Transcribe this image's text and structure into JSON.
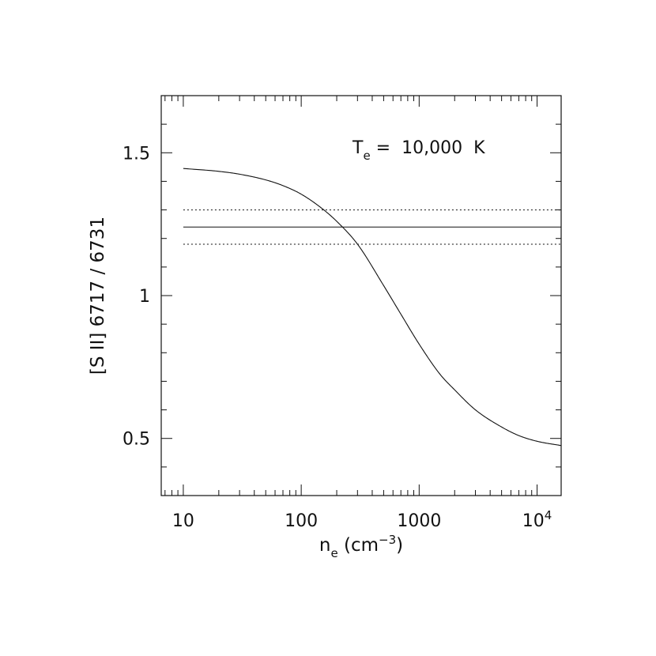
{
  "chart_data": {
    "type": "line",
    "title": "",
    "annotation": {
      "base": "T",
      "sub": "e",
      "rest": " =  10,000  K"
    },
    "xlabel": {
      "base": "n",
      "sub": "e",
      "unit_prefix": " (cm",
      "unit_sup": "−3",
      "unit_suffix": ")"
    },
    "ylabel": "[S II] 6717 / 6731",
    "xscale": "log",
    "xlim": [
      6.5,
      16000
    ],
    "ylim": [
      0.3,
      1.7
    ],
    "x_ticks": [
      {
        "value": 10,
        "label": "10"
      },
      {
        "value": 100,
        "label": "100"
      },
      {
        "value": 1000,
        "label": "1000"
      },
      {
        "value": 10000,
        "base": "10",
        "sup": "4"
      }
    ],
    "y_ticks": [
      {
        "value": 0.5,
        "label": "0.5"
      },
      {
        "value": 1,
        "label": "1"
      },
      {
        "value": 1.5,
        "label": "1.5"
      }
    ],
    "y_minor_step": 0.1,
    "grid": false,
    "series": [
      {
        "style": "solid",
        "x": [
          10,
          20,
          30,
          50,
          70,
          100,
          150,
          200,
          300,
          500,
          700,
          1000,
          1500,
          2000,
          3000,
          5000,
          7000,
          10000,
          16000
        ],
        "y": [
          1.445,
          1.435,
          1.425,
          1.405,
          1.385,
          1.355,
          1.305,
          1.26,
          1.18,
          1.035,
          0.935,
          0.83,
          0.725,
          0.67,
          0.6,
          0.54,
          0.51,
          0.49,
          0.475
        ]
      }
    ],
    "hlines": [
      {
        "y": 1.24,
        "style": "solid"
      },
      {
        "y": 1.3,
        "style": "dotted"
      },
      {
        "y": 1.18,
        "style": "dotted"
      }
    ]
  }
}
